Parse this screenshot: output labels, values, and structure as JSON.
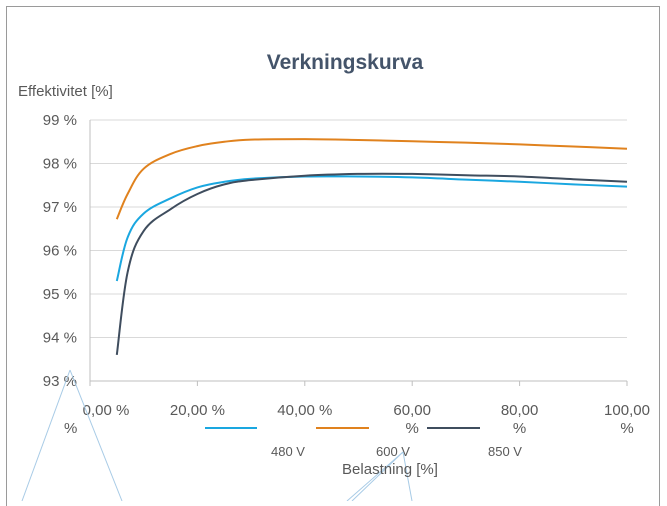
{
  "chart_data": {
    "type": "line",
    "title": "Verkningskurva",
    "ylabel": "Effektivitet [%]",
    "xlabel": "Belastning [%]",
    "ylim": [
      93,
      99
    ],
    "xlim": [
      0,
      100
    ],
    "y_ticks": [
      {
        "value": 93,
        "label": "93 %"
      },
      {
        "value": 94,
        "label": "94 %"
      },
      {
        "value": 95,
        "label": "95 %"
      },
      {
        "value": 96,
        "label": "96 %"
      },
      {
        "value": 97,
        "label": "97 %"
      },
      {
        "value": 98,
        "label": "98 %"
      },
      {
        "value": 99,
        "label": "99 %"
      }
    ],
    "x_ticks": [
      {
        "value": 0,
        "lines": [
          "0,00 %",
          "%"
        ]
      },
      {
        "value": 20,
        "lines": [
          "20,00 %"
        ]
      },
      {
        "value": 40,
        "lines": [
          "40,00 %"
        ]
      },
      {
        "value": 60,
        "lines": [
          "60,00",
          "%"
        ]
      },
      {
        "value": 80,
        "lines": [
          "80,00",
          "%"
        ]
      },
      {
        "value": 100,
        "lines": [
          "100,00",
          "%"
        ]
      }
    ],
    "grid": true,
    "legend_position": "bottom",
    "series": [
      {
        "name": "480 V",
        "color": "#1aa7e0",
        "points": [
          [
            5,
            95.3
          ],
          [
            7,
            96.3
          ],
          [
            10,
            96.85
          ],
          [
            15,
            97.2
          ],
          [
            20,
            97.45
          ],
          [
            25,
            97.58
          ],
          [
            30,
            97.65
          ],
          [
            40,
            97.7
          ],
          [
            50,
            97.7
          ],
          [
            60,
            97.68
          ],
          [
            70,
            97.63
          ],
          [
            80,
            97.58
          ],
          [
            90,
            97.52
          ],
          [
            100,
            97.47
          ]
        ]
      },
      {
        "name": "600 V",
        "color": "#e0821e",
        "points": [
          [
            5,
            96.72
          ],
          [
            7,
            97.3
          ],
          [
            10,
            97.88
          ],
          [
            15,
            98.22
          ],
          [
            20,
            98.4
          ],
          [
            25,
            98.5
          ],
          [
            30,
            98.55
          ],
          [
            40,
            98.56
          ],
          [
            50,
            98.54
          ],
          [
            60,
            98.51
          ],
          [
            70,
            98.48
          ],
          [
            80,
            98.44
          ],
          [
            90,
            98.39
          ],
          [
            100,
            98.34
          ]
        ]
      },
      {
        "name": "850 V",
        "color": "#3f4d5e",
        "points": [
          [
            5,
            93.6
          ],
          [
            7,
            95.5
          ],
          [
            10,
            96.45
          ],
          [
            15,
            96.95
          ],
          [
            20,
            97.3
          ],
          [
            25,
            97.52
          ],
          [
            30,
            97.62
          ],
          [
            40,
            97.72
          ],
          [
            50,
            97.76
          ],
          [
            60,
            97.76
          ],
          [
            70,
            97.73
          ],
          [
            80,
            97.7
          ],
          [
            90,
            97.64
          ],
          [
            100,
            97.58
          ]
        ]
      }
    ]
  }
}
